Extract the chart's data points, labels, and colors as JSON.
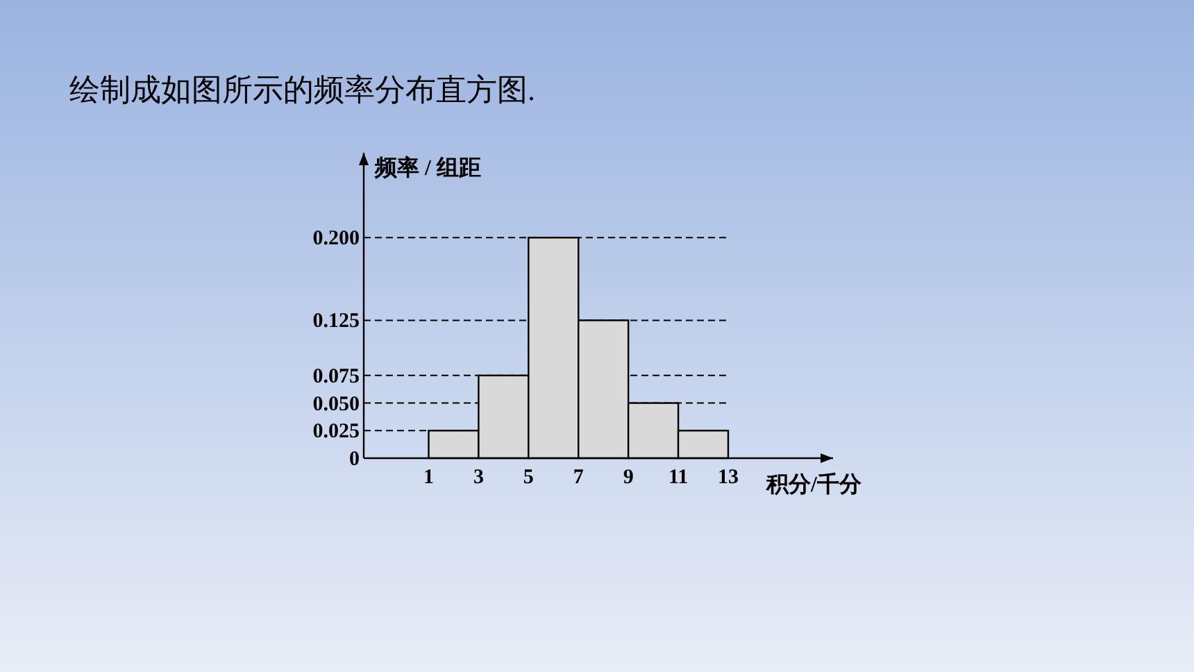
{
  "chart_data": {
    "type": "histogram",
    "title": "绘制成如图所示的频率分布直方图.",
    "ylabel": "频率 / 组距",
    "xlabel": "积分/千分",
    "bins": [
      1,
      3,
      5,
      7,
      9,
      11,
      13
    ],
    "values": [
      0.025,
      0.075,
      0.2,
      0.125,
      0.05,
      0.025
    ],
    "color": "#d9d9d9",
    "xlim": [
      -1.6,
      17.2
    ],
    "xticks": [
      1,
      3,
      5,
      7,
      9,
      11,
      13
    ],
    "ylim": [
      0,
      0.277
    ],
    "yticks": [
      0,
      {
        "value": 0.025,
        "label": "0.025"
      },
      {
        "value": 0.05,
        "label": "0.050"
      },
      {
        "value": 0.075,
        "label": "0.075"
      },
      {
        "value": 0.125,
        "label": "0.125"
      },
      {
        "value": 0.2,
        "label": "0.200"
      }
    ],
    "grid": "y"
  }
}
